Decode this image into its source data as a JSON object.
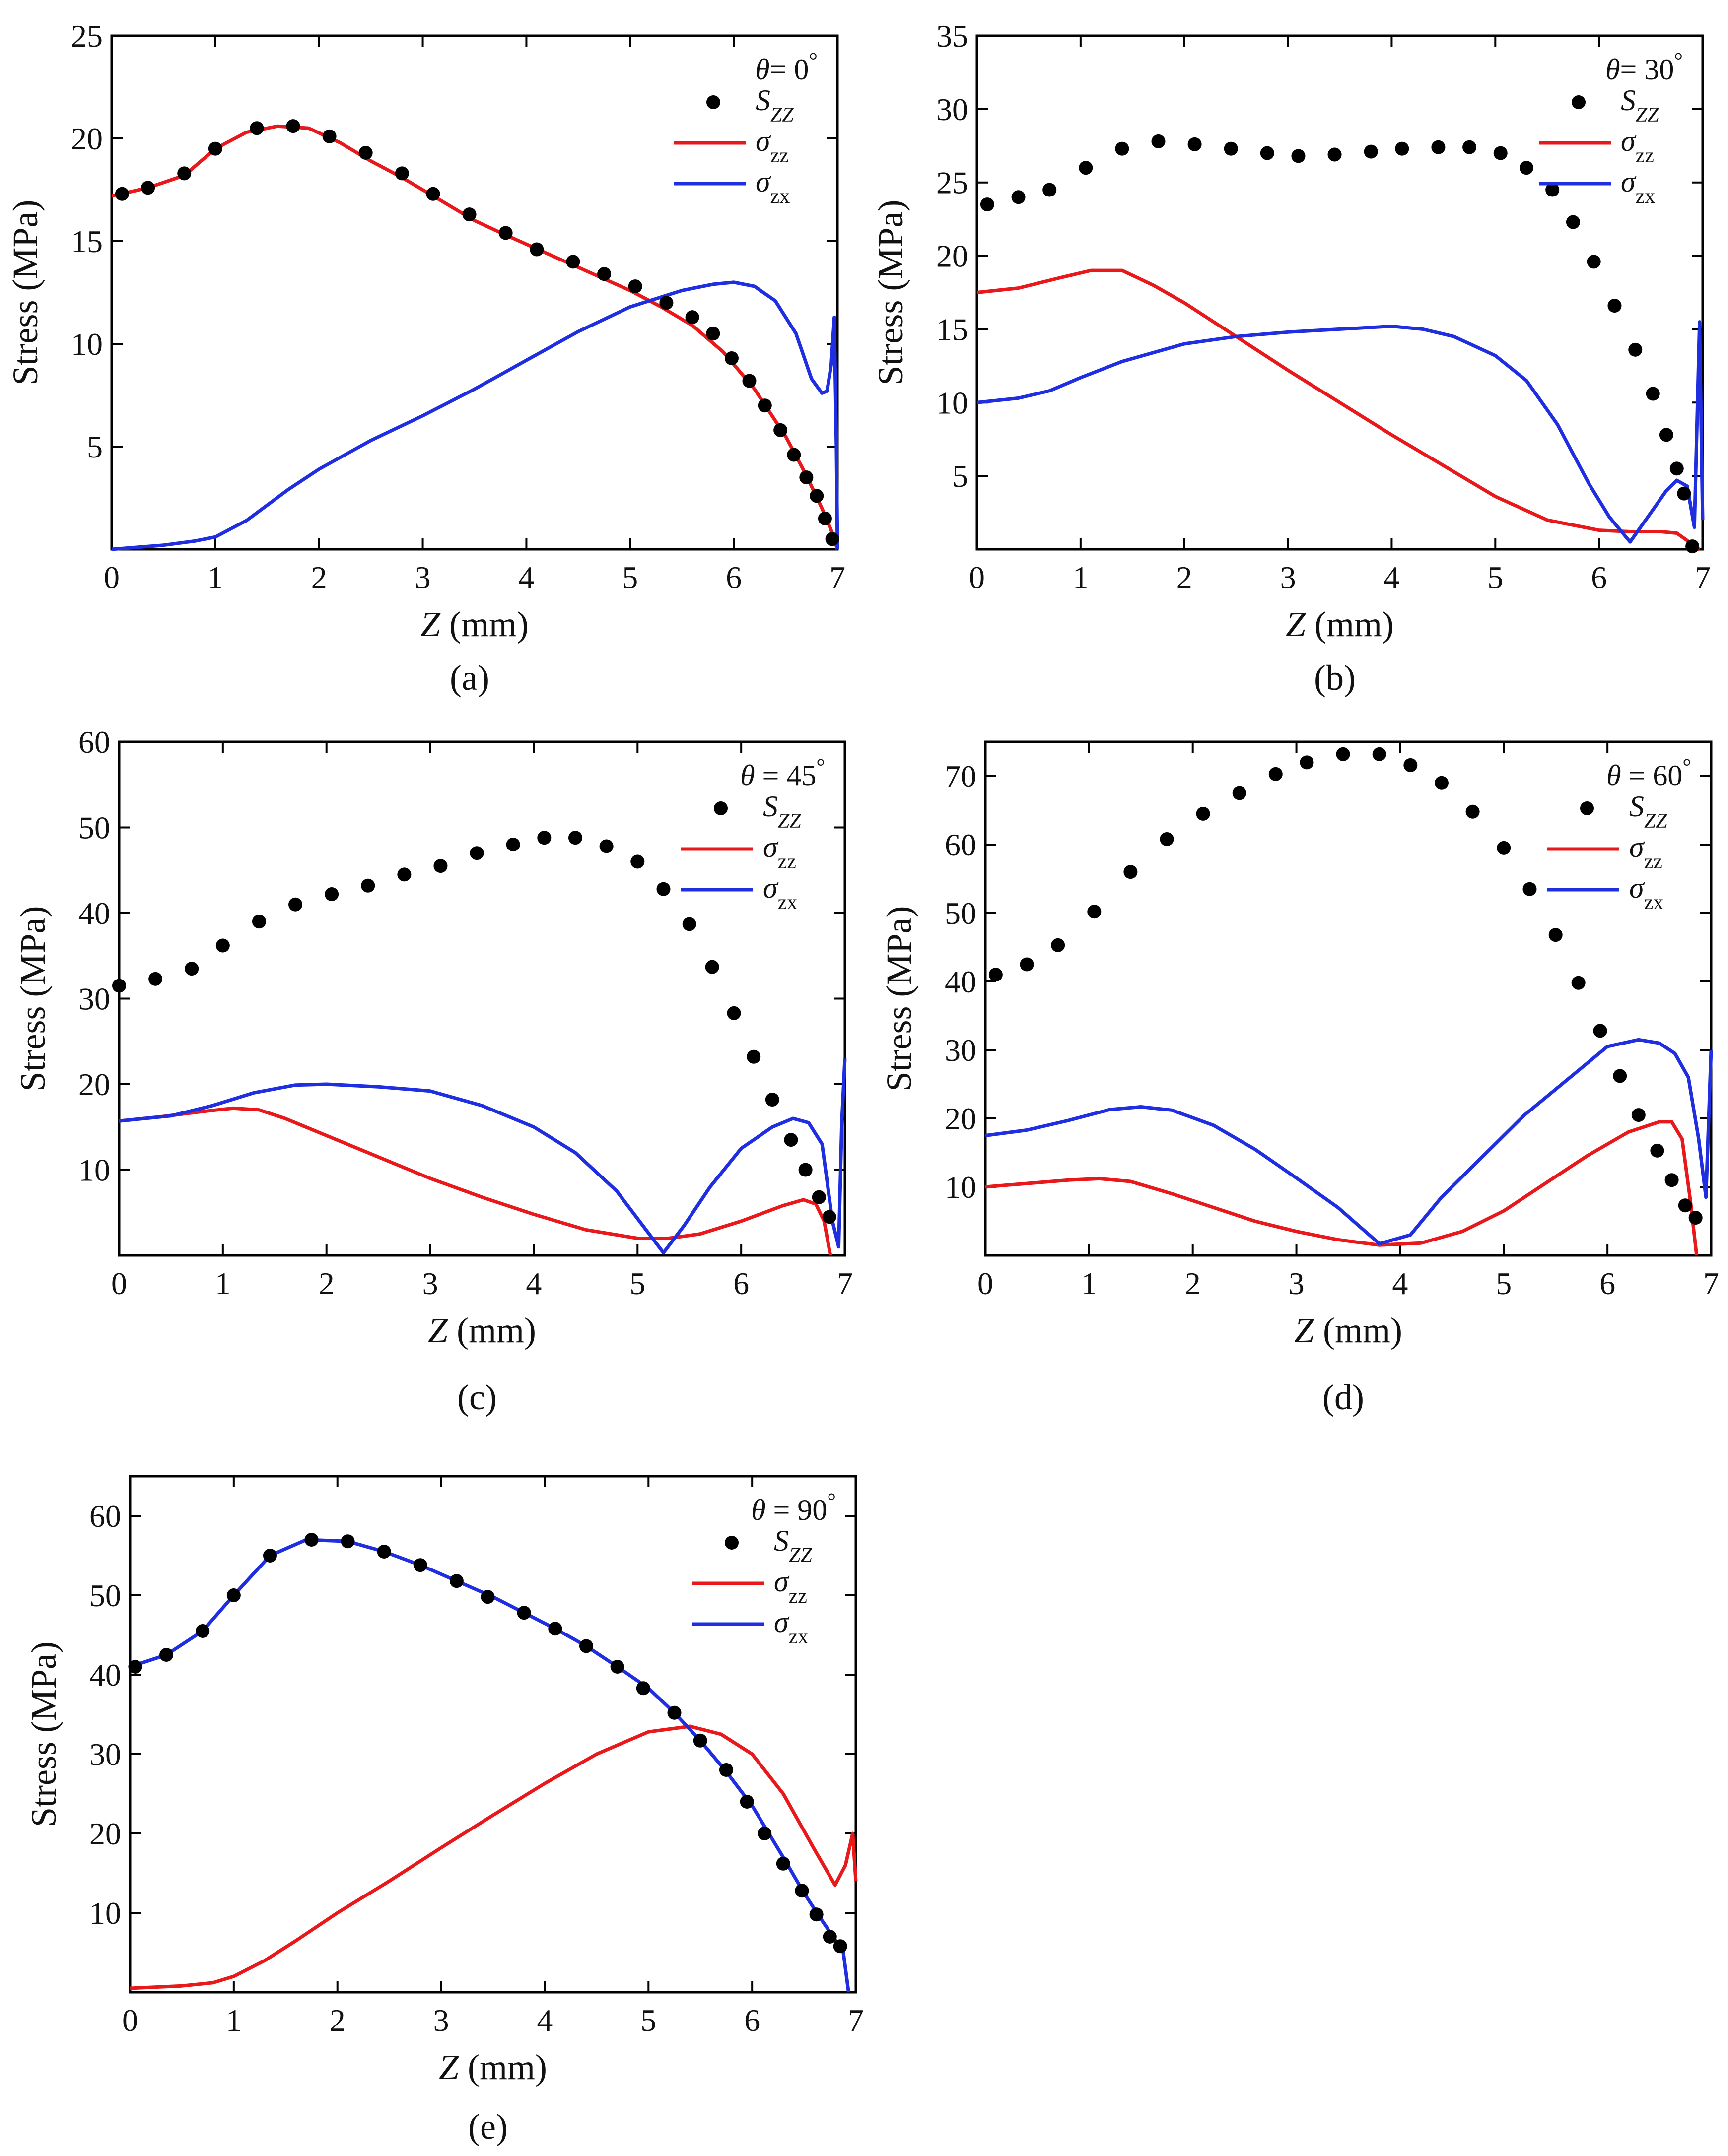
{
  "figure": {
    "panels": [
      {
        "caption": "(a)",
        "xlabel": "Z (mm)",
        "ylabel": "Stress (MPa)",
        "legend_title": "θ= 0°"
      },
      {
        "caption": "(b)",
        "xlabel": "Z (mm)",
        "ylabel": "Stress (MPa)",
        "legend_title": "θ= 30°"
      },
      {
        "caption": "(c)",
        "xlabel": "Z (mm)",
        "ylabel": "Stress (MPa)",
        "legend_title": "θ = 45°"
      },
      {
        "caption": "(d)",
        "xlabel": "Z (mm)",
        "ylabel": "Stress (MPa)",
        "legend_title": "θ = 60°"
      },
      {
        "caption": "(e)",
        "xlabel": "Z (mm)",
        "ylabel": "Stress (MPa)",
        "legend_title": "θ = 90°"
      }
    ]
  },
  "colors": {
    "szz": "#000000",
    "sigma_zz": "#e8181b",
    "sigma_zx": "#1f2ee0"
  },
  "chart_data": [
    {
      "type": "line",
      "title": "θ= 0°",
      "xlabel": "Z (mm)",
      "ylabel": "Stress (MPa)",
      "xlim": [
        0,
        7
      ],
      "ylim": [
        0,
        25
      ],
      "xticks": [
        0,
        1,
        2,
        3,
        4,
        5,
        6,
        7
      ],
      "yticks": [
        5,
        10,
        15,
        20,
        25
      ],
      "legend_position": "top-right",
      "series": [
        {
          "name": "S_ZZ",
          "style": "markers",
          "x": [
            0.1,
            0.35,
            0.7,
            1.0,
            1.4,
            1.75,
            2.1,
            2.45,
            2.8,
            3.1,
            3.45,
            3.8,
            4.1,
            4.45,
            4.75,
            5.05,
            5.35,
            5.6,
            5.8,
            5.98,
            6.15,
            6.3,
            6.45,
            6.58,
            6.7,
            6.8,
            6.88,
            6.95
          ],
          "y": [
            17.3,
            17.6,
            18.3,
            19.5,
            20.5,
            20.6,
            20.1,
            19.3,
            18.3,
            17.3,
            16.3,
            15.4,
            14.6,
            14.0,
            13.4,
            12.8,
            12.0,
            11.3,
            10.5,
            9.3,
            8.2,
            7.0,
            5.8,
            4.6,
            3.5,
            2.6,
            1.5,
            0.5
          ]
        },
        {
          "name": "σzz",
          "style": "line",
          "x": [
            0.0,
            0.35,
            0.7,
            1.0,
            1.3,
            1.6,
            1.9,
            2.2,
            2.5,
            2.8,
            3.1,
            3.5,
            3.8,
            4.2,
            4.6,
            5.0,
            5.3,
            5.6,
            5.9,
            6.2,
            6.5,
            6.7,
            6.85,
            6.95,
            7.0
          ],
          "y": [
            17.2,
            17.6,
            18.2,
            19.5,
            20.3,
            20.6,
            20.5,
            19.8,
            18.9,
            18.1,
            17.2,
            16.0,
            15.3,
            14.4,
            13.5,
            12.6,
            11.8,
            10.9,
            9.6,
            7.8,
            5.5,
            3.6,
            2.0,
            0.8,
            0.0
          ]
        },
        {
          "name": "σzx",
          "style": "line",
          "x": [
            0.0,
            0.5,
            0.8,
            1.0,
            1.3,
            1.7,
            2.0,
            2.5,
            3.0,
            3.5,
            4.0,
            4.5,
            5.0,
            5.5,
            5.8,
            6.0,
            6.2,
            6.4,
            6.6,
            6.75,
            6.85,
            6.9,
            6.94,
            6.97,
            6.99,
            7.0
          ],
          "y": [
            0.0,
            0.2,
            0.4,
            0.6,
            1.4,
            2.9,
            3.9,
            5.3,
            6.5,
            7.8,
            9.2,
            10.6,
            11.8,
            12.6,
            12.9,
            13.0,
            12.8,
            12.1,
            10.5,
            8.3,
            7.6,
            7.7,
            9.0,
            11.3,
            5.0,
            0.0
          ]
        }
      ]
    },
    {
      "type": "line",
      "title": "θ= 30°",
      "xlabel": "Z (mm)",
      "ylabel": "Stress (MPa)",
      "xlim": [
        0,
        7
      ],
      "ylim": [
        0,
        35
      ],
      "xticks": [
        0,
        1,
        2,
        3,
        4,
        5,
        6,
        7
      ],
      "yticks": [
        5,
        10,
        15,
        20,
        25,
        30,
        35
      ],
      "legend_position": "top-right",
      "series": [
        {
          "name": "S_ZZ",
          "style": "markers",
          "x": [
            0.1,
            0.4,
            0.7,
            1.05,
            1.4,
            1.75,
            2.1,
            2.45,
            2.8,
            3.1,
            3.45,
            3.8,
            4.1,
            4.45,
            4.75,
            5.05,
            5.3,
            5.55,
            5.75,
            5.95,
            6.15,
            6.35,
            6.52,
            6.65,
            6.75,
            6.82,
            6.9
          ],
          "y": [
            23.5,
            24.0,
            24.5,
            26.0,
            27.3,
            27.8,
            27.6,
            27.3,
            27.0,
            26.8,
            26.9,
            27.1,
            27.3,
            27.4,
            27.4,
            27.0,
            26.0,
            24.5,
            22.3,
            19.6,
            16.6,
            13.6,
            10.6,
            7.8,
            5.5,
            3.8,
            0.2
          ]
        },
        {
          "name": "σzz",
          "style": "line",
          "x": [
            0.0,
            0.4,
            0.8,
            1.1,
            1.4,
            1.7,
            2.0,
            2.5,
            3.0,
            3.5,
            4.0,
            4.5,
            5.0,
            5.5,
            6.0,
            6.3,
            6.6,
            6.75,
            6.85,
            6.92,
            6.97
          ],
          "y": [
            17.5,
            17.8,
            18.5,
            19.0,
            19.0,
            18.0,
            16.8,
            14.5,
            12.2,
            10.0,
            7.8,
            5.7,
            3.6,
            2.0,
            1.3,
            1.2,
            1.2,
            1.1,
            0.6,
            0.1,
            0.0
          ]
        },
        {
          "name": "σzx",
          "style": "line",
          "x": [
            0.0,
            0.4,
            0.7,
            1.0,
            1.4,
            2.0,
            2.5,
            3.0,
            3.5,
            4.0,
            4.3,
            4.6,
            5.0,
            5.3,
            5.6,
            5.9,
            6.1,
            6.3,
            6.5,
            6.65,
            6.75,
            6.85,
            6.92,
            6.97,
            7.0
          ],
          "y": [
            10.0,
            10.3,
            10.8,
            11.7,
            12.8,
            14.0,
            14.5,
            14.8,
            15.0,
            15.2,
            15.0,
            14.5,
            13.2,
            11.5,
            8.5,
            4.5,
            2.2,
            0.5,
            2.5,
            4.0,
            4.7,
            4.3,
            1.5,
            15.5,
            2.0
          ]
        }
      ]
    },
    {
      "type": "line",
      "title": "θ = 45°",
      "xlabel": "Z (mm)",
      "ylabel": "Stress (MPa)",
      "xlim": [
        0,
        7
      ],
      "ylim": [
        0,
        60
      ],
      "xticks": [
        0,
        1,
        2,
        3,
        4,
        5,
        6,
        7
      ],
      "yticks": [
        10,
        20,
        30,
        40,
        50,
        60
      ],
      "legend_position": "top-right",
      "series": [
        {
          "name": "S_ZZ",
          "style": "markers",
          "x": [
            0.0,
            0.35,
            0.7,
            1.0,
            1.35,
            1.7,
            2.05,
            2.4,
            2.75,
            3.1,
            3.45,
            3.8,
            4.1,
            4.4,
            4.7,
            5.0,
            5.25,
            5.5,
            5.72,
            5.93,
            6.12,
            6.3,
            6.48,
            6.62,
            6.75,
            6.85
          ],
          "y": [
            31.5,
            32.3,
            33.5,
            36.2,
            39.0,
            41.0,
            42.2,
            43.2,
            44.5,
            45.5,
            47.0,
            48.0,
            48.8,
            48.8,
            47.8,
            46.0,
            42.8,
            38.7,
            33.7,
            28.3,
            23.2,
            18.2,
            13.5,
            10.0,
            6.8,
            4.5
          ]
        },
        {
          "name": "σzz",
          "style": "line",
          "x": [
            0.0,
            0.4,
            0.8,
            1.1,
            1.35,
            1.6,
            2.0,
            2.5,
            3.0,
            3.5,
            4.0,
            4.5,
            5.0,
            5.3,
            5.6,
            6.0,
            6.4,
            6.6,
            6.72,
            6.8,
            6.86
          ],
          "y": [
            15.7,
            16.2,
            16.8,
            17.2,
            17.0,
            16.0,
            14.0,
            11.5,
            9.0,
            6.8,
            4.8,
            3.0,
            2.0,
            2.0,
            2.5,
            4.0,
            5.8,
            6.5,
            6.0,
            4.0,
            0.0
          ]
        },
        {
          "name": "σzx",
          "style": "line",
          "x": [
            0.0,
            0.5,
            0.9,
            1.3,
            1.7,
            2.0,
            2.5,
            3.0,
            3.5,
            4.0,
            4.4,
            4.8,
            5.05,
            5.25,
            5.45,
            5.7,
            6.0,
            6.3,
            6.5,
            6.65,
            6.78,
            6.88,
            6.94,
            6.97,
            7.0
          ],
          "y": [
            15.7,
            16.3,
            17.5,
            19.0,
            19.9,
            20.0,
            19.7,
            19.2,
            17.5,
            15.0,
            12.0,
            7.5,
            3.5,
            0.3,
            3.5,
            8.0,
            12.5,
            15.0,
            16.0,
            15.5,
            13.0,
            4.0,
            1.0,
            15.5,
            23.0
          ]
        }
      ]
    },
    {
      "type": "line",
      "title": "θ = 60°",
      "xlabel": "Z (mm)",
      "ylabel": "Stress (MPa)",
      "xlim": [
        0,
        7
      ],
      "ylim": [
        0,
        75
      ],
      "xticks": [
        0,
        1,
        2,
        3,
        4,
        5,
        6,
        7
      ],
      "yticks": [
        10,
        20,
        30,
        40,
        50,
        60,
        70
      ],
      "legend_position": "top-right",
      "series": [
        {
          "name": "S_ZZ",
          "style": "markers",
          "x": [
            0.1,
            0.4,
            0.7,
            1.05,
            1.4,
            1.75,
            2.1,
            2.45,
            2.8,
            3.1,
            3.45,
            3.8,
            4.1,
            4.4,
            4.7,
            5.0,
            5.25,
            5.5,
            5.72,
            5.93,
            6.12,
            6.3,
            6.48,
            6.62,
            6.75,
            6.85
          ],
          "y": [
            41.0,
            42.5,
            45.3,
            50.2,
            56.0,
            60.8,
            64.5,
            67.5,
            70.3,
            72.0,
            73.2,
            73.2,
            71.6,
            69.0,
            64.8,
            59.5,
            53.5,
            46.8,
            39.8,
            32.8,
            26.2,
            20.5,
            15.3,
            11.0,
            7.3,
            5.5
          ]
        },
        {
          "name": "σzz",
          "style": "line",
          "x": [
            0.0,
            0.4,
            0.8,
            1.1,
            1.4,
            1.8,
            2.2,
            2.6,
            3.0,
            3.4,
            3.8,
            4.2,
            4.6,
            5.0,
            5.4,
            5.8,
            6.2,
            6.5,
            6.62,
            6.72,
            6.8,
            6.86
          ],
          "y": [
            10.0,
            10.5,
            11.0,
            11.2,
            10.8,
            9.0,
            7.0,
            5.0,
            3.5,
            2.3,
            1.5,
            1.8,
            3.5,
            6.5,
            10.5,
            14.5,
            18.0,
            19.5,
            19.5,
            17.0,
            8.0,
            0.0
          ]
        },
        {
          "name": "σzx",
          "style": "line",
          "x": [
            0.0,
            0.4,
            0.8,
            1.2,
            1.5,
            1.8,
            2.2,
            2.6,
            3.0,
            3.4,
            3.8,
            4.1,
            4.4,
            4.8,
            5.2,
            5.6,
            6.0,
            6.3,
            6.5,
            6.65,
            6.78,
            6.88,
            6.95,
            7.0
          ],
          "y": [
            17.5,
            18.3,
            19.7,
            21.3,
            21.7,
            21.2,
            19.0,
            15.5,
            11.3,
            7.0,
            1.7,
            3.0,
            8.5,
            14.5,
            20.5,
            25.5,
            30.5,
            31.5,
            31.0,
            29.5,
            26.0,
            17.0,
            8.5,
            30.0
          ]
        }
      ]
    },
    {
      "type": "line",
      "title": "θ = 90°",
      "xlabel": "Z (mm)",
      "ylabel": "Stress (MPa)",
      "xlim": [
        0,
        7
      ],
      "ylim": [
        0,
        65
      ],
      "xticks": [
        0,
        1,
        2,
        3,
        4,
        5,
        6,
        7
      ],
      "yticks": [
        10,
        20,
        30,
        40,
        50,
        60
      ],
      "legend_position": "top-right",
      "series": [
        {
          "name": "S_ZZ",
          "style": "markers",
          "x": [
            0.05,
            0.35,
            0.7,
            1.0,
            1.35,
            1.75,
            2.1,
            2.45,
            2.8,
            3.15,
            3.45,
            3.8,
            4.1,
            4.4,
            4.7,
            4.95,
            5.25,
            5.5,
            5.75,
            5.95,
            6.12,
            6.3,
            6.48,
            6.62,
            6.75,
            6.85
          ],
          "y": [
            41.0,
            42.5,
            45.5,
            50.0,
            55.0,
            57.0,
            56.8,
            55.5,
            53.8,
            51.8,
            49.8,
            47.8,
            45.8,
            43.6,
            41.0,
            38.3,
            35.2,
            31.7,
            28.0,
            24.0,
            20.0,
            16.2,
            12.8,
            9.8,
            7.0,
            5.8
          ]
        },
        {
          "name": "σzz",
          "style": "line",
          "x": [
            0.0,
            0.5,
            0.8,
            1.0,
            1.3,
            1.6,
            2.0,
            2.5,
            3.0,
            3.5,
            4.0,
            4.5,
            5.0,
            5.4,
            5.7,
            6.0,
            6.3,
            6.6,
            6.8,
            6.9,
            6.97,
            7.0
          ],
          "y": [
            0.5,
            0.8,
            1.2,
            2.0,
            4.0,
            6.5,
            10.0,
            14.0,
            18.2,
            22.3,
            26.3,
            30.0,
            32.8,
            33.5,
            32.5,
            30.0,
            25.0,
            18.0,
            13.5,
            16.0,
            20.0,
            14.0
          ]
        },
        {
          "name": "σzx",
          "style": "line",
          "x": [
            0.0,
            0.35,
            0.7,
            1.0,
            1.35,
            1.7,
            2.1,
            2.45,
            2.8,
            3.15,
            3.5,
            3.8,
            4.1,
            4.4,
            4.7,
            5.0,
            5.25,
            5.5,
            5.75,
            6.0,
            6.3,
            6.5,
            6.65,
            6.78,
            6.88,
            6.93
          ],
          "y": [
            41.0,
            42.5,
            45.5,
            50.0,
            55.0,
            57.0,
            56.8,
            55.5,
            53.8,
            51.8,
            49.8,
            47.8,
            45.8,
            43.6,
            41.0,
            38.3,
            35.2,
            31.7,
            27.8,
            23.5,
            17.0,
            12.5,
            9.5,
            7.0,
            5.0,
            0.0
          ]
        }
      ]
    }
  ]
}
